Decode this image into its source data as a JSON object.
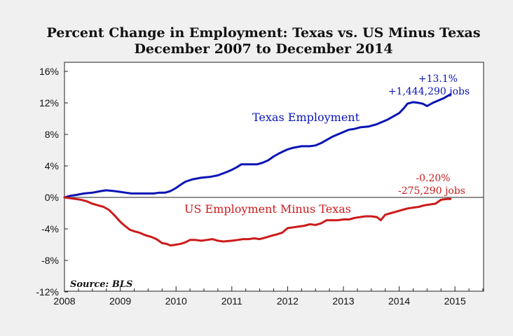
{
  "chart_data": {
    "type": "line",
    "title": "Percent Change in Employment: Texas vs. US Minus Texas",
    "subtitle": "December 2007 to December 2014",
    "source": "Source: BLS",
    "xlim": [
      2008,
      2015.5
    ],
    "ylim": [
      -12,
      17
    ],
    "x_ticks": [
      2008,
      2009,
      2010,
      2011,
      2012,
      2013,
      2014,
      2015
    ],
    "y_ticks": [
      -12,
      -8,
      -4,
      0,
      4,
      8,
      12,
      16
    ],
    "y_tick_labels": [
      "-12%",
      "-8%",
      "-4%",
      "0%",
      "4%",
      "8%",
      "12%",
      "16%"
    ],
    "grid": false,
    "series": [
      {
        "name": "Texas Employment",
        "color": "#0a14b4",
        "annotation": [
          "+13.1%",
          "+1,444,290 jobs"
        ],
        "points": [
          [
            2008.0,
            0.0
          ],
          [
            2008.1,
            0.2
          ],
          [
            2008.2,
            0.3
          ],
          [
            2008.35,
            0.5
          ],
          [
            2008.5,
            0.6
          ],
          [
            2008.65,
            0.8
          ],
          [
            2008.75,
            0.9
          ],
          [
            2008.9,
            0.8
          ],
          [
            2009.0,
            0.7
          ],
          [
            2009.1,
            0.6
          ],
          [
            2009.2,
            0.5
          ],
          [
            2009.4,
            0.5
          ],
          [
            2009.6,
            0.5
          ],
          [
            2009.7,
            0.6
          ],
          [
            2009.8,
            0.6
          ],
          [
            2009.9,
            0.8
          ],
          [
            2010.0,
            1.2
          ],
          [
            2010.08,
            1.6
          ],
          [
            2010.17,
            2.0
          ],
          [
            2010.3,
            2.3
          ],
          [
            2010.45,
            2.5
          ],
          [
            2010.6,
            2.6
          ],
          [
            2010.75,
            2.8
          ],
          [
            2010.9,
            3.2
          ],
          [
            2011.0,
            3.5
          ],
          [
            2011.08,
            3.8
          ],
          [
            2011.17,
            4.2
          ],
          [
            2011.3,
            4.2
          ],
          [
            2011.45,
            4.2
          ],
          [
            2011.55,
            4.4
          ],
          [
            2011.65,
            4.7
          ],
          [
            2011.75,
            5.2
          ],
          [
            2011.85,
            5.6
          ],
          [
            2012.0,
            6.1
          ],
          [
            2012.1,
            6.3
          ],
          [
            2012.25,
            6.5
          ],
          [
            2012.4,
            6.5
          ],
          [
            2012.5,
            6.6
          ],
          [
            2012.6,
            6.9
          ],
          [
            2012.7,
            7.3
          ],
          [
            2012.8,
            7.7
          ],
          [
            2012.9,
            8.0
          ],
          [
            2013.0,
            8.3
          ],
          [
            2013.1,
            8.6
          ],
          [
            2013.2,
            8.7
          ],
          [
            2013.3,
            8.9
          ],
          [
            2013.45,
            9.0
          ],
          [
            2013.6,
            9.3
          ],
          [
            2013.7,
            9.6
          ],
          [
            2013.8,
            9.9
          ],
          [
            2013.9,
            10.3
          ],
          [
            2014.0,
            10.7
          ],
          [
            2014.08,
            11.3
          ],
          [
            2014.15,
            11.9
          ],
          [
            2014.25,
            12.1
          ],
          [
            2014.35,
            12.0
          ],
          [
            2014.42,
            11.9
          ],
          [
            2014.5,
            11.6
          ],
          [
            2014.6,
            12.0
          ],
          [
            2014.7,
            12.3
          ],
          [
            2014.8,
            12.6
          ],
          [
            2014.92,
            13.1
          ]
        ]
      },
      {
        "name": "US Employment Minus Texas",
        "color": "#cc1a1a",
        "annotation": [
          "-0.20%",
          "-275,290 jobs"
        ],
        "points": [
          [
            2008.0,
            0.0
          ],
          [
            2008.1,
            -0.1
          ],
          [
            2008.2,
            -0.2
          ],
          [
            2008.3,
            -0.3
          ],
          [
            2008.4,
            -0.5
          ],
          [
            2008.5,
            -0.8
          ],
          [
            2008.6,
            -1.0
          ],
          [
            2008.7,
            -1.2
          ],
          [
            2008.8,
            -1.6
          ],
          [
            2008.9,
            -2.3
          ],
          [
            2009.0,
            -3.1
          ],
          [
            2009.08,
            -3.6
          ],
          [
            2009.17,
            -4.1
          ],
          [
            2009.25,
            -4.3
          ],
          [
            2009.35,
            -4.5
          ],
          [
            2009.45,
            -4.8
          ],
          [
            2009.55,
            -5.0
          ],
          [
            2009.65,
            -5.3
          ],
          [
            2009.75,
            -5.8
          ],
          [
            2009.83,
            -5.9
          ],
          [
            2009.9,
            -6.1
          ],
          [
            2010.0,
            -6.0
          ],
          [
            2010.08,
            -5.9
          ],
          [
            2010.17,
            -5.7
          ],
          [
            2010.25,
            -5.4
          ],
          [
            2010.35,
            -5.4
          ],
          [
            2010.45,
            -5.5
          ],
          [
            2010.55,
            -5.4
          ],
          [
            2010.65,
            -5.3
          ],
          [
            2010.75,
            -5.5
          ],
          [
            2010.85,
            -5.6
          ],
          [
            2011.0,
            -5.5
          ],
          [
            2011.1,
            -5.4
          ],
          [
            2011.2,
            -5.3
          ],
          [
            2011.3,
            -5.3
          ],
          [
            2011.4,
            -5.2
          ],
          [
            2011.5,
            -5.3
          ],
          [
            2011.6,
            -5.1
          ],
          [
            2011.7,
            -4.9
          ],
          [
            2011.8,
            -4.7
          ],
          [
            2011.9,
            -4.5
          ],
          [
            2012.0,
            -3.9
          ],
          [
            2012.1,
            -3.8
          ],
          [
            2012.2,
            -3.7
          ],
          [
            2012.3,
            -3.6
          ],
          [
            2012.4,
            -3.4
          ],
          [
            2012.5,
            -3.5
          ],
          [
            2012.6,
            -3.3
          ],
          [
            2012.7,
            -2.9
          ],
          [
            2012.8,
            -2.9
          ],
          [
            2012.9,
            -2.9
          ],
          [
            2013.0,
            -2.8
          ],
          [
            2013.1,
            -2.8
          ],
          [
            2013.2,
            -2.6
          ],
          [
            2013.3,
            -2.5
          ],
          [
            2013.4,
            -2.4
          ],
          [
            2013.5,
            -2.4
          ],
          [
            2013.6,
            -2.5
          ],
          [
            2013.67,
            -2.9
          ],
          [
            2013.75,
            -2.2
          ],
          [
            2013.85,
            -2.0
          ],
          [
            2013.95,
            -1.8
          ],
          [
            2014.05,
            -1.6
          ],
          [
            2014.15,
            -1.4
          ],
          [
            2014.25,
            -1.3
          ],
          [
            2014.35,
            -1.2
          ],
          [
            2014.45,
            -1.0
          ],
          [
            2014.55,
            -0.9
          ],
          [
            2014.65,
            -0.8
          ],
          [
            2014.75,
            -0.3
          ],
          [
            2014.85,
            -0.2
          ],
          [
            2014.92,
            -0.2
          ]
        ]
      }
    ]
  }
}
